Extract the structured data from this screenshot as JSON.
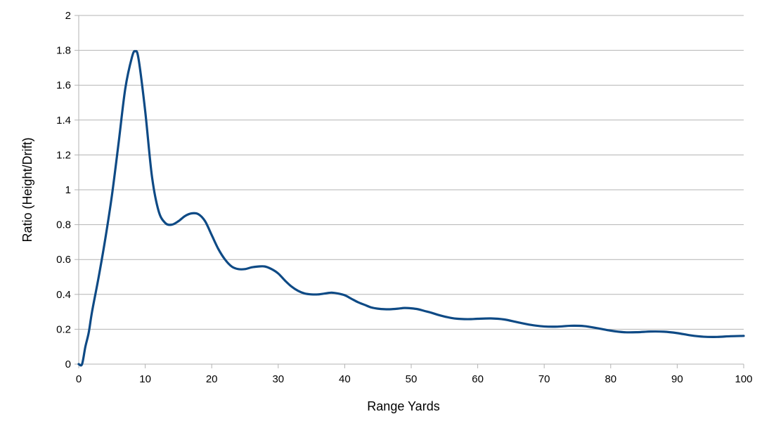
{
  "chart_data": {
    "type": "line",
    "title": "",
    "xlabel": "Range Yards",
    "ylabel": "Ratio (Height/Drift)",
    "xlim": [
      0,
      100
    ],
    "ylim": [
      0,
      2
    ],
    "x_ticks": [
      0,
      10,
      20,
      30,
      40,
      50,
      60,
      70,
      80,
      90,
      100
    ],
    "y_ticks": [
      0,
      0.2,
      0.4,
      0.6,
      0.8,
      1,
      1.2,
      1.4,
      1.6,
      1.8,
      2
    ],
    "grid": {
      "horizontal": true,
      "vertical": false
    },
    "legend": "none",
    "colors": {
      "line": "#0e4a85",
      "grid": "#b3b3b3",
      "axis": "#b3b3b3"
    },
    "series": [
      {
        "x": [
          0,
          0.5,
          1,
          1.5,
          2,
          3,
          4,
          5,
          6,
          7,
          8,
          8.5,
          9,
          10,
          11,
          12,
          13,
          14,
          15,
          16,
          17,
          18,
          19,
          20,
          21,
          22,
          23,
          24,
          25,
          26,
          27,
          28,
          29,
          30,
          31,
          32,
          33,
          34,
          35,
          36,
          37,
          38,
          39,
          40,
          41,
          42,
          43,
          44,
          45,
          46,
          47,
          48,
          49,
          50,
          51,
          52,
          53,
          54,
          55,
          56,
          57,
          58,
          59,
          60,
          62,
          64,
          66,
          68,
          70,
          72,
          74,
          76,
          78,
          80,
          82,
          84,
          86,
          88,
          90,
          92,
          94,
          96,
          98,
          100
        ],
        "values": [
          0,
          0.0,
          0.1,
          0.18,
          0.3,
          0.5,
          0.72,
          0.97,
          1.27,
          1.58,
          1.76,
          1.795,
          1.75,
          1.45,
          1.08,
          0.88,
          0.81,
          0.8,
          0.82,
          0.85,
          0.865,
          0.86,
          0.82,
          0.74,
          0.66,
          0.6,
          0.56,
          0.545,
          0.545,
          0.555,
          0.56,
          0.56,
          0.545,
          0.52,
          0.48,
          0.445,
          0.42,
          0.405,
          0.4,
          0.4,
          0.405,
          0.41,
          0.405,
          0.395,
          0.375,
          0.355,
          0.34,
          0.325,
          0.318,
          0.315,
          0.315,
          0.318,
          0.322,
          0.32,
          0.315,
          0.305,
          0.295,
          0.283,
          0.273,
          0.265,
          0.26,
          0.258,
          0.258,
          0.26,
          0.262,
          0.256,
          0.24,
          0.225,
          0.216,
          0.215,
          0.22,
          0.218,
          0.206,
          0.192,
          0.183,
          0.183,
          0.187,
          0.186,
          0.178,
          0.165,
          0.157,
          0.156,
          0.16,
          0.162
        ]
      }
    ]
  }
}
